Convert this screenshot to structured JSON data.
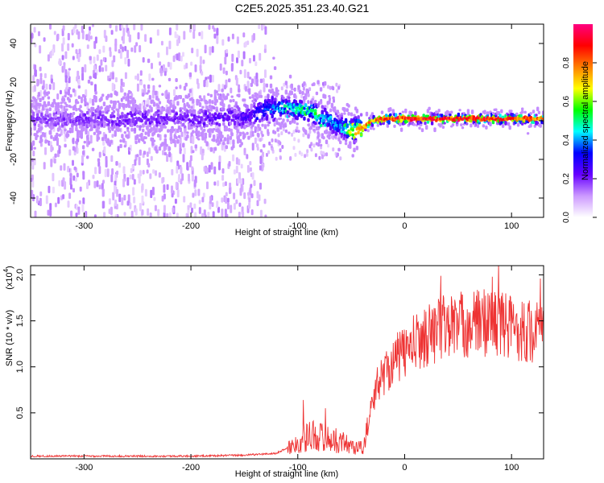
{
  "figure_title": "C2E5.2025.351.23.40.G21",
  "chart_data": [
    {
      "type": "heatmap",
      "title": "C2E5.2025.351.23.40.G21",
      "xlabel": "Height of straight line (km)",
      "ylabel": "Frequency (Hz)",
      "xlim": [
        -350,
        130
      ],
      "ylim": [
        -50,
        50
      ],
      "xticks": [
        -300,
        -200,
        -100,
        0,
        100
      ],
      "yticks": [
        -40,
        -20,
        0,
        20,
        40
      ],
      "xtick_labels": [
        "-300",
        "-200",
        "-100",
        "0",
        "100"
      ],
      "ytick_labels": [
        "-40",
        "-20",
        "0",
        "20",
        "40"
      ],
      "colorbar": {
        "label": "Normalized spectral amplitude",
        "range": [
          0,
          1
        ],
        "ticks": [
          0.0,
          0.2,
          0.4,
          0.6,
          0.8
        ],
        "tick_labels": [
          "0.0",
          "0.2",
          "0.4",
          "0.6",
          "0.8"
        ],
        "colormap": [
          "#ffffff",
          "#cc99ff",
          "#6600ff",
          "#0000ff",
          "#00ffff",
          "#00ff00",
          "#ffff00",
          "#ff8000",
          "#ff0000",
          "#ff0080"
        ]
      },
      "ridge": {
        "x": [
          -350,
          -300,
          -250,
          -200,
          -150,
          -130,
          -110,
          -90,
          -70,
          -60,
          -50,
          -40,
          -30,
          -20,
          0,
          50,
          100,
          130
        ],
        "frequency": [
          1,
          1,
          1,
          1,
          2,
          6,
          7,
          5,
          0,
          -3,
          -5,
          -4,
          0,
          1,
          1,
          1,
          1,
          1
        ],
        "amplitude": [
          0.18,
          0.2,
          0.22,
          0.22,
          0.25,
          0.35,
          0.5,
          0.55,
          0.45,
          0.4,
          0.7,
          0.8,
          0.85,
          0.9,
          0.95,
          0.95,
          0.9,
          0.85
        ]
      }
    },
    {
      "type": "line",
      "xlabel": "Height of straight line (km)",
      "ylabel": "SNR (10 * v/v)",
      "y_multiplier": "(x10",
      "y_multiplier_exp": "4",
      "y_multiplier_close": ")",
      "xlim": [
        -350,
        130
      ],
      "ylim": [
        0,
        2.1
      ],
      "xticks": [
        -300,
        -200,
        -100,
        0,
        100
      ],
      "yticks": [
        0.5,
        1.0,
        1.5,
        2.0
      ],
      "xtick_labels": [
        "-300",
        "-200",
        "-100",
        "0",
        "100"
      ],
      "ytick_labels": [
        "0.5",
        "1.0",
        "1.5",
        "2.0"
      ],
      "color": "#ee3333",
      "envelope": {
        "x": [
          -350,
          -200,
          -150,
          -120,
          -100,
          -90,
          -80,
          -70,
          -60,
          -50,
          -40,
          -35,
          -30,
          -25,
          -20,
          -10,
          0,
          10,
          20,
          30,
          40,
          60,
          80,
          100,
          110,
          120,
          130
        ],
        "y": [
          0.03,
          0.03,
          0.04,
          0.06,
          0.18,
          0.28,
          0.26,
          0.22,
          0.2,
          0.15,
          0.12,
          0.3,
          0.65,
          0.85,
          0.95,
          1.1,
          1.2,
          1.3,
          1.38,
          1.45,
          1.5,
          1.5,
          1.55,
          1.48,
          1.45,
          1.42,
          1.4
        ]
      },
      "peaks": [
        {
          "x": -95,
          "y": 0.64
        },
        {
          "x": -74,
          "y": 0.55
        },
        {
          "x": 34,
          "y": 1.99
        },
        {
          "x": 82,
          "y": 1.98
        },
        {
          "x": 88,
          "y": 2.12
        },
        {
          "x": 127,
          "y": 1.96
        }
      ]
    }
  ]
}
